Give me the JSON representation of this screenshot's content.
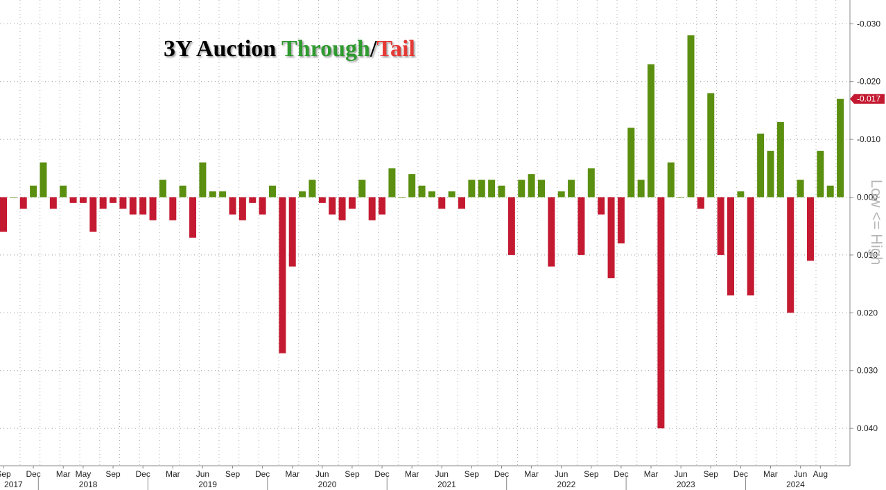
{
  "title": {
    "part1": "3Y Auction ",
    "part2": "Through",
    "sep": "/",
    "part3": "Tail"
  },
  "colors": {
    "through": "#5a8f10",
    "tail": "#c41a31",
    "title_green": "#2f9a2f",
    "title_red": "#e53935",
    "label_bg": "#c41a31"
  },
  "chart_data": {
    "type": "bar",
    "ylabel": "Low <= High",
    "y_axis_inverted": true,
    "ylim": [
      0.045,
      -0.035
    ],
    "y_ticks": [
      "-0.030",
      "-0.020",
      "-0.010",
      "0.000",
      "0.010",
      "0.020",
      "0.030",
      "0.040"
    ],
    "y_tick_values": [
      -0.03,
      -0.02,
      -0.01,
      0,
      0.01,
      0.02,
      0.03,
      0.04
    ],
    "last_value_label": "-0.017",
    "grid": true,
    "values": [
      0.006,
      0.0,
      0.002,
      -0.002,
      -0.006,
      0.002,
      -0.002,
      0.001,
      0.001,
      0.006,
      0.002,
      0.001,
      0.002,
      0.003,
      0.003,
      0.004,
      -0.003,
      0.004,
      -0.002,
      0.007,
      -0.006,
      -0.001,
      -0.001,
      0.003,
      0.004,
      0.001,
      0.003,
      -0.002,
      0.027,
      0.012,
      -0.001,
      -0.003,
      0.001,
      0.003,
      0.004,
      0.002,
      -0.003,
      0.004,
      0.003,
      -0.005,
      0.0,
      -0.004,
      -0.002,
      -0.001,
      0.002,
      -0.001,
      0.002,
      -0.003,
      -0.003,
      -0.003,
      -0.002,
      0.01,
      -0.003,
      -0.004,
      -0.003,
      0.012,
      -0.001,
      -0.003,
      0.01,
      -0.005,
      0.003,
      0.014,
      0.008,
      -0.012,
      -0.003,
      -0.023,
      0.04,
      -0.006,
      0.0,
      -0.028,
      0.002,
      -0.018,
      0.01,
      0.017,
      -0.001,
      0.017,
      -0.011,
      -0.008,
      -0.013,
      0.02,
      -0.003,
      0.011,
      -0.008,
      -0.002,
      -0.017
    ],
    "x_month_labels": [
      {
        "label": "Sep",
        "i": 0
      },
      {
        "label": "Dec",
        "i": 3
      },
      {
        "label": "Mar",
        "i": 6
      },
      {
        "label": "May",
        "i": 8
      },
      {
        "label": "Sep",
        "i": 11
      },
      {
        "label": "Dec",
        "i": 14
      },
      {
        "label": "Mar",
        "i": 17
      },
      {
        "label": "Jun",
        "i": 20
      },
      {
        "label": "Sep",
        "i": 23
      },
      {
        "label": "Dec",
        "i": 26
      },
      {
        "label": "Mar",
        "i": 29
      },
      {
        "label": "Jun",
        "i": 32
      },
      {
        "label": "Sep",
        "i": 35
      },
      {
        "label": "Dec",
        "i": 38
      },
      {
        "label": "Mar",
        "i": 41
      },
      {
        "label": "Jun",
        "i": 44
      },
      {
        "label": "Sep",
        "i": 47
      },
      {
        "label": "Dec",
        "i": 50
      },
      {
        "label": "Mar",
        "i": 53
      },
      {
        "label": "Jun",
        "i": 56
      },
      {
        "label": "Sep",
        "i": 59
      },
      {
        "label": "Dec",
        "i": 62
      },
      {
        "label": "Mar",
        "i": 65
      },
      {
        "label": "Jun",
        "i": 68
      },
      {
        "label": "Sep",
        "i": 71
      },
      {
        "label": "Dec",
        "i": 74
      },
      {
        "label": "Mar",
        "i": 77
      },
      {
        "label": "Jun",
        "i": 80
      },
      {
        "label": "Aug",
        "i": 82
      }
    ],
    "x_year_labels": [
      {
        "label": "2017",
        "i": 1
      },
      {
        "label": "2018",
        "i": 8.5
      },
      {
        "label": "2019",
        "i": 20.5
      },
      {
        "label": "2020",
        "i": 32.5
      },
      {
        "label": "2021",
        "i": 44.5
      },
      {
        "label": "2022",
        "i": 56.5
      },
      {
        "label": "2023",
        "i": 68.5
      },
      {
        "label": "2024",
        "i": 79.5
      }
    ],
    "year_boundaries": [
      3.5,
      14.5,
      26.5,
      38.5,
      50.5,
      62.5,
      74.5
    ]
  }
}
